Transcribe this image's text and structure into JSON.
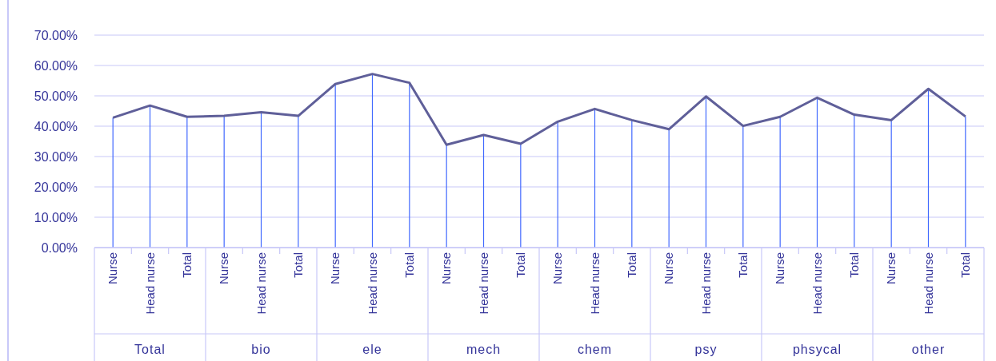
{
  "chart_data": {
    "type": "line",
    "categories": [
      "Nurse",
      "Head nurse",
      "Total",
      "Nurse",
      "Head nurse",
      "Total",
      "Nurse",
      "Head nurse",
      "Total",
      "Nurse",
      "Head nurse",
      "Total",
      "Nurse",
      "Head nurse",
      "Total",
      "Nurse",
      "Head nurse",
      "Total",
      "Nurse",
      "Head nurse",
      "Total",
      "Nurse",
      "Head nurse",
      "Total"
    ],
    "series": [
      {
        "type": "bar",
        "color": "#4169ff",
        "values": [
          42.8,
          46.8,
          43.1,
          43.4,
          44.6,
          43.4,
          53.9,
          57.2,
          54.3,
          33.9,
          37.1,
          34.2,
          41.5,
          45.7,
          42.0,
          39.0,
          49.8,
          40.1,
          43.1,
          49.4,
          43.8,
          42.0,
          52.3,
          43.2
        ]
      },
      {
        "color": "#5f5f99",
        "values": [
          42.8,
          46.8,
          43.1,
          43.4,
          44.6,
          43.4,
          53.9,
          57.2,
          54.3,
          33.9,
          37.1,
          34.2,
          41.5,
          45.7,
          42.0,
          39.0,
          49.8,
          40.1,
          43.1,
          49.4,
          43.8,
          42.0,
          52.3,
          43.2
        ]
      }
    ],
    "annotations": [
      "Total",
      "bio",
      "ele",
      "mech",
      "chem",
      "psy",
      "phsycal",
      "other"
    ],
    "ylim": [
      0,
      70
    ],
    "yticks": [
      {
        "value": 0,
        "label": "0.00%"
      },
      {
        "value": 10,
        "label": "10.00%"
      },
      {
        "value": 20,
        "label": "20.00%"
      },
      {
        "value": 30,
        "label": "30.00%"
      },
      {
        "value": 40,
        "label": "40.00%"
      },
      {
        "value": 50,
        "label": "50.00%"
      },
      {
        "value": 60,
        "label": "60.00%"
      },
      {
        "value": 70,
        "label": "70.00%"
      }
    ],
    "grid": "y",
    "marker": "none",
    "line_style": "solid"
  }
}
